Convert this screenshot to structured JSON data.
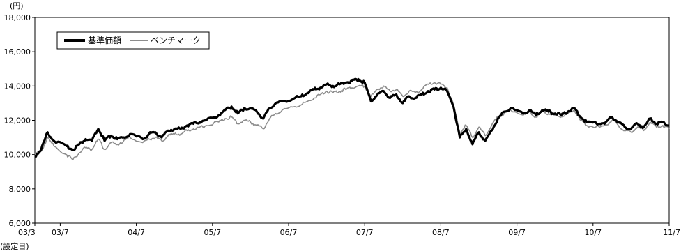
{
  "chart_data": {
    "type": "line",
    "y_unit_label": "(円)",
    "x_start_note": "(設定日)",
    "ylim": [
      6000,
      18000
    ],
    "y_ticks": [
      {
        "value": 6000,
        "label": "6,000"
      },
      {
        "value": 8000,
        "label": "8,000"
      },
      {
        "value": 10000,
        "label": "10,000"
      },
      {
        "value": 12000,
        "label": "12,000"
      },
      {
        "value": 14000,
        "label": "14,000"
      },
      {
        "value": 16000,
        "label": "16,000"
      },
      {
        "value": 18000,
        "label": "18,000"
      }
    ],
    "xlim": [
      "2003-03",
      "2011-07"
    ],
    "x_ticks": [
      {
        "value": "2003-03",
        "label": "03/3"
      },
      {
        "value": "2003-07",
        "label": "03/7"
      },
      {
        "value": "2004-07",
        "label": "04/7"
      },
      {
        "value": "2005-07",
        "label": "05/7"
      },
      {
        "value": "2006-07",
        "label": "06/7"
      },
      {
        "value": "2007-07",
        "label": "07/7"
      },
      {
        "value": "2008-07",
        "label": "08/7"
      },
      {
        "value": "2009-07",
        "label": "09/7"
      },
      {
        "value": "2010-07",
        "label": "10/7"
      },
      {
        "value": "2011-07",
        "label": "11/7"
      }
    ],
    "grid": false,
    "legend": {
      "position": "top-left"
    },
    "series": [
      {
        "name": "基準価額",
        "color": "#000000",
        "points": [
          [
            "2003-03",
            9900
          ],
          [
            "2003-04",
            10300
          ],
          [
            "2003-05",
            11300
          ],
          [
            "2003-06",
            10800
          ],
          [
            "2003-08",
            10500
          ],
          [
            "2003-09",
            10300
          ],
          [
            "2003-10",
            10600
          ],
          [
            "2003-11",
            10900
          ],
          [
            "2003-12",
            10800
          ],
          [
            "2004-01",
            11500
          ],
          [
            "2004-02",
            10800
          ],
          [
            "2004-03",
            11100
          ],
          [
            "2004-04",
            10900
          ],
          [
            "2004-05",
            11000
          ],
          [
            "2004-06",
            11200
          ],
          [
            "2004-08",
            10900
          ],
          [
            "2004-09",
            11200
          ],
          [
            "2004-10",
            11300
          ],
          [
            "2004-11",
            11000
          ],
          [
            "2004-12",
            11400
          ],
          [
            "2005-01",
            11500
          ],
          [
            "2005-02",
            11500
          ],
          [
            "2005-03",
            11700
          ],
          [
            "2005-04",
            11800
          ],
          [
            "2005-05",
            11900
          ],
          [
            "2005-06",
            12000
          ],
          [
            "2005-08",
            12300
          ],
          [
            "2005-09",
            12600
          ],
          [
            "2005-10",
            12800
          ],
          [
            "2005-11",
            12400
          ],
          [
            "2005-12",
            12700
          ],
          [
            "2006-01",
            12700
          ],
          [
            "2006-02",
            12500
          ],
          [
            "2006-03",
            12100
          ],
          [
            "2006-04",
            12700
          ],
          [
            "2006-05",
            13000
          ],
          [
            "2006-06",
            13100
          ],
          [
            "2006-08",
            13300
          ],
          [
            "2006-09",
            13400
          ],
          [
            "2006-10",
            13600
          ],
          [
            "2006-11",
            13800
          ],
          [
            "2006-12",
            13900
          ],
          [
            "2007-01",
            14100
          ],
          [
            "2007-02",
            14000
          ],
          [
            "2007-03",
            14100
          ],
          [
            "2007-04",
            14200
          ],
          [
            "2007-05",
            14300
          ],
          [
            "2007-06",
            14400
          ],
          [
            "2007-07",
            14200
          ],
          [
            "2007-08",
            13100
          ],
          [
            "2007-09",
            13500
          ],
          [
            "2007-10",
            13700
          ],
          [
            "2007-11",
            13300
          ],
          [
            "2007-12",
            13500
          ],
          [
            "2008-01",
            13000
          ],
          [
            "2008-02",
            13400
          ],
          [
            "2008-03",
            13300
          ],
          [
            "2008-04",
            13500
          ],
          [
            "2008-05",
            13700
          ],
          [
            "2008-06",
            13800
          ],
          [
            "2008-07",
            13900
          ],
          [
            "2008-08",
            13700
          ],
          [
            "2008-09",
            12800
          ],
          [
            "2008-10",
            11000
          ],
          [
            "2008-11",
            11500
          ],
          [
            "2008-12",
            10600
          ],
          [
            "2009-01",
            11300
          ],
          [
            "2009-02",
            10800
          ],
          [
            "2009-03",
            11400
          ],
          [
            "2009-04",
            12100
          ],
          [
            "2009-05",
            12500
          ],
          [
            "2009-06",
            12700
          ],
          [
            "2009-08",
            12400
          ],
          [
            "2009-09",
            12600
          ],
          [
            "2009-10",
            12300
          ],
          [
            "2009-11",
            12600
          ],
          [
            "2009-12",
            12500
          ],
          [
            "2010-01",
            12400
          ],
          [
            "2010-02",
            12300
          ],
          [
            "2010-03",
            12500
          ],
          [
            "2010-04",
            12700
          ],
          [
            "2010-05",
            12200
          ],
          [
            "2010-06",
            11900
          ],
          [
            "2010-08",
            11800
          ],
          [
            "2010-09",
            11900
          ],
          [
            "2010-10",
            12200
          ],
          [
            "2010-11",
            11900
          ],
          [
            "2010-12",
            11600
          ],
          [
            "2011-01",
            11500
          ],
          [
            "2011-02",
            11800
          ],
          [
            "2011-03",
            11600
          ],
          [
            "2011-04",
            12100
          ],
          [
            "2011-05",
            11800
          ],
          [
            "2011-06",
            11900
          ],
          [
            "2011-07",
            11700
          ]
        ]
      },
      {
        "name": "ベンチマーク",
        "color": "#8c8c8c",
        "points": [
          [
            "2003-03",
            10000
          ],
          [
            "2003-04",
            10200
          ],
          [
            "2003-05",
            11000
          ],
          [
            "2003-06",
            10500
          ],
          [
            "2003-08",
            10000
          ],
          [
            "2003-09",
            9700
          ],
          [
            "2003-10",
            10100
          ],
          [
            "2003-11",
            10400
          ],
          [
            "2003-12",
            10300
          ],
          [
            "2004-01",
            10900
          ],
          [
            "2004-02",
            10300
          ],
          [
            "2004-03",
            10700
          ],
          [
            "2004-04",
            10600
          ],
          [
            "2004-05",
            10800
          ],
          [
            "2004-06",
            11000
          ],
          [
            "2004-08",
            10700
          ],
          [
            "2004-09",
            10900
          ],
          [
            "2004-10",
            11000
          ],
          [
            "2004-11",
            10800
          ],
          [
            "2004-12",
            11100
          ],
          [
            "2005-01",
            11200
          ],
          [
            "2005-02",
            11200
          ],
          [
            "2005-03",
            11400
          ],
          [
            "2005-04",
            11500
          ],
          [
            "2005-05",
            11600
          ],
          [
            "2005-06",
            11700
          ],
          [
            "2005-08",
            11900
          ],
          [
            "2005-09",
            12100
          ],
          [
            "2005-10",
            12200
          ],
          [
            "2005-11",
            11800
          ],
          [
            "2005-12",
            12000
          ],
          [
            "2006-01",
            11900
          ],
          [
            "2006-02",
            11700
          ],
          [
            "2006-03",
            11500
          ],
          [
            "2006-04",
            12100
          ],
          [
            "2006-05",
            12400
          ],
          [
            "2006-06",
            12600
          ],
          [
            "2006-08",
            12800
          ],
          [
            "2006-09",
            12900
          ],
          [
            "2006-10",
            13100
          ],
          [
            "2006-11",
            13300
          ],
          [
            "2006-12",
            13500
          ],
          [
            "2007-01",
            13700
          ],
          [
            "2007-02",
            13600
          ],
          [
            "2007-03",
            13700
          ],
          [
            "2007-04",
            13800
          ],
          [
            "2007-05",
            13900
          ],
          [
            "2007-06",
            14000
          ],
          [
            "2007-07",
            14000
          ],
          [
            "2007-08",
            13400
          ],
          [
            "2007-09",
            13800
          ],
          [
            "2007-10",
            14000
          ],
          [
            "2007-11",
            13700
          ],
          [
            "2007-12",
            13800
          ],
          [
            "2008-01",
            13400
          ],
          [
            "2008-02",
            13700
          ],
          [
            "2008-03",
            13600
          ],
          [
            "2008-04",
            13800
          ],
          [
            "2008-05",
            14100
          ],
          [
            "2008-06",
            14200
          ],
          [
            "2008-07",
            14100
          ],
          [
            "2008-08",
            13900
          ],
          [
            "2008-09",
            12900
          ],
          [
            "2008-10",
            11300
          ],
          [
            "2008-11",
            11700
          ],
          [
            "2008-12",
            11000
          ],
          [
            "2009-01",
            11600
          ],
          [
            "2009-02",
            11100
          ],
          [
            "2009-03",
            11700
          ],
          [
            "2009-04",
            12200
          ],
          [
            "2009-05",
            12400
          ],
          [
            "2009-06",
            12600
          ],
          [
            "2009-08",
            12300
          ],
          [
            "2009-09",
            12500
          ],
          [
            "2009-10",
            12200
          ],
          [
            "2009-11",
            12500
          ],
          [
            "2009-12",
            12400
          ],
          [
            "2010-01",
            12300
          ],
          [
            "2010-02",
            12200
          ],
          [
            "2010-03",
            12400
          ],
          [
            "2010-04",
            12600
          ],
          [
            "2010-05",
            12000
          ],
          [
            "2010-06",
            11700
          ],
          [
            "2010-08",
            11600
          ],
          [
            "2010-09",
            11700
          ],
          [
            "2010-10",
            12000
          ],
          [
            "2010-11",
            11700
          ],
          [
            "2010-12",
            11400
          ],
          [
            "2011-01",
            11300
          ],
          [
            "2011-02",
            11600
          ],
          [
            "2011-03",
            11400
          ],
          [
            "2011-04",
            11900
          ],
          [
            "2011-05",
            11600
          ],
          [
            "2011-06",
            11700
          ],
          [
            "2011-07",
            11500
          ]
        ]
      }
    ]
  }
}
